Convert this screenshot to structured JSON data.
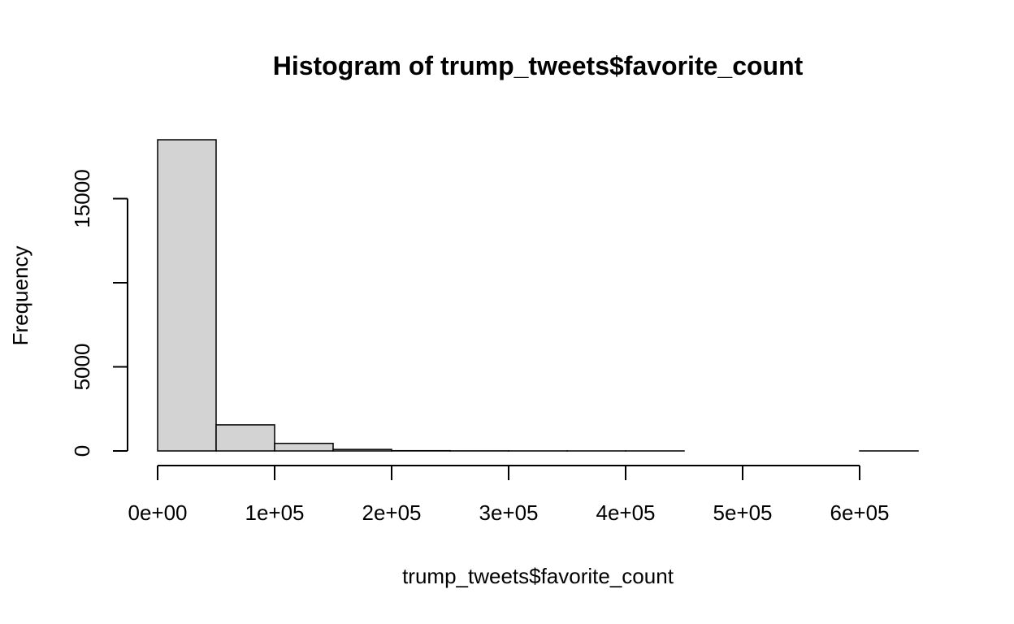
{
  "chart_data": {
    "type": "bar",
    "title": "Histogram of trump_tweets$favorite_count",
    "xlabel": "trump_tweets$favorite_count",
    "ylabel": "Frequency",
    "bins": [
      {
        "from": 0,
        "to": 50000,
        "count": 18500
      },
      {
        "from": 50000,
        "to": 100000,
        "count": 1550
      },
      {
        "from": 100000,
        "to": 150000,
        "count": 450
      },
      {
        "from": 150000,
        "to": 200000,
        "count": 90
      },
      {
        "from": 200000,
        "to": 250000,
        "count": 15
      },
      {
        "from": 250000,
        "to": 300000,
        "count": 5
      },
      {
        "from": 300000,
        "to": 350000,
        "count": 2
      },
      {
        "from": 350000,
        "to": 400000,
        "count": 1
      },
      {
        "from": 400000,
        "to": 450000,
        "count": 1
      },
      {
        "from": 450000,
        "to": 500000,
        "count": 0
      },
      {
        "from": 500000,
        "to": 550000,
        "count": 0
      },
      {
        "from": 550000,
        "to": 600000,
        "count": 0
      },
      {
        "from": 600000,
        "to": 650000,
        "count": 1
      }
    ],
    "xlim": [
      0,
      650000
    ],
    "ylim": [
      0,
      18500
    ],
    "x_ticks": [
      0,
      100000,
      200000,
      300000,
      400000,
      500000,
      600000
    ],
    "x_tick_labels": [
      "0e+00",
      "1e+05",
      "2e+05",
      "3e+05",
      "4e+05",
      "5e+05",
      "6e+05"
    ],
    "y_ticks": [
      0,
      5000,
      10000,
      15000
    ],
    "y_tick_labels": [
      "0",
      "5000",
      "",
      "15000"
    ],
    "bar_fill": "#d3d3d3",
    "bar_stroke": "#000000",
    "grid": false,
    "legend": "none"
  }
}
